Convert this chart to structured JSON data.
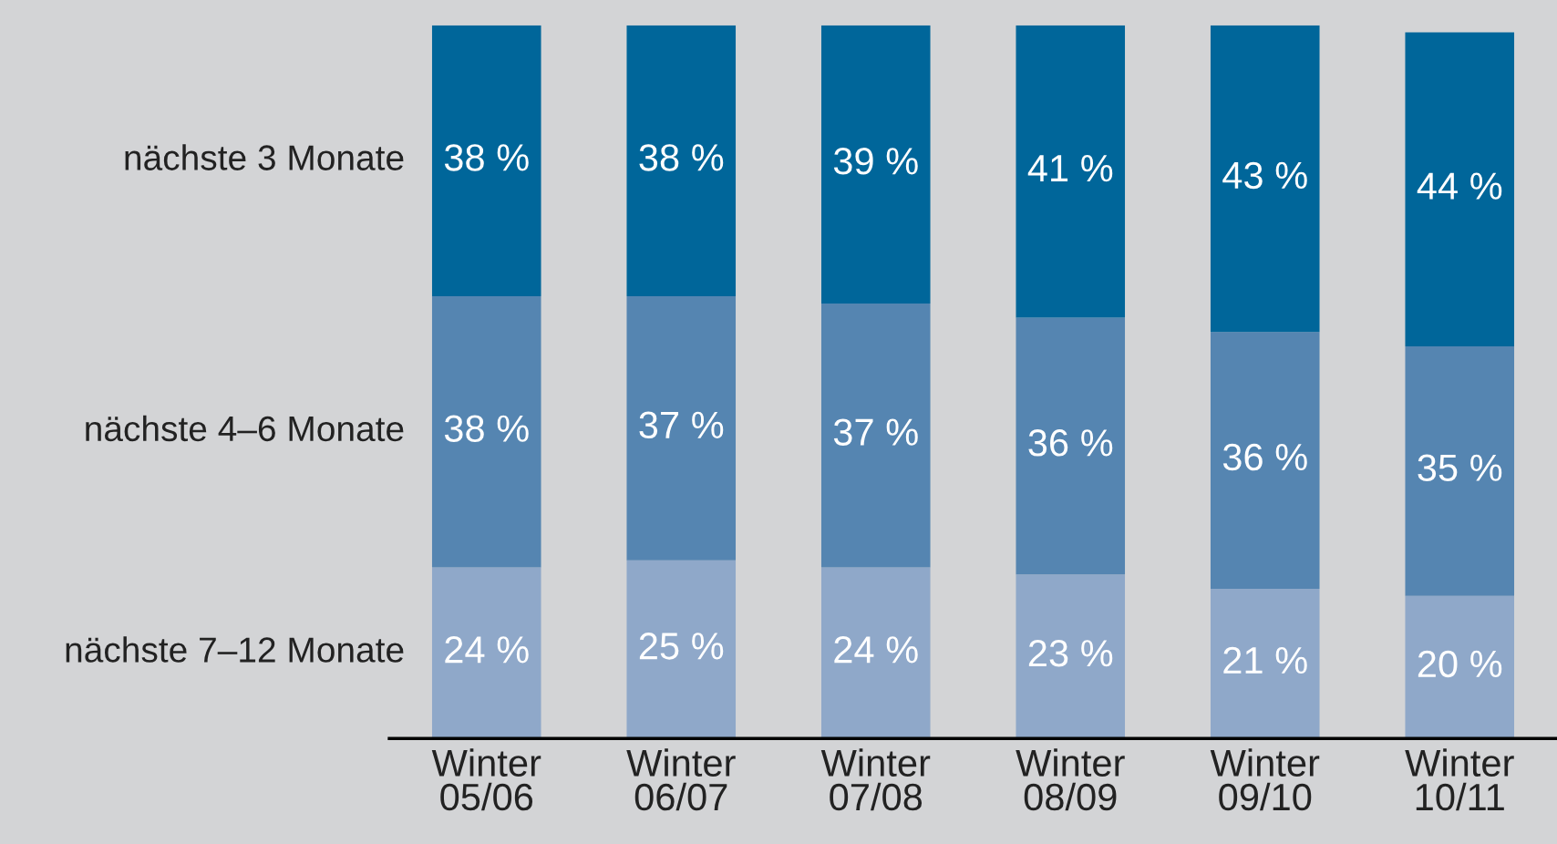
{
  "chart_data": {
    "type": "bar",
    "stacked": true,
    "categories": [
      "Winter\n05/06",
      "Winter\n06/07",
      "Winter\n07/08",
      "Winter\n08/09",
      "Winter\n09/10",
      "Winter\n10/11"
    ],
    "series": [
      {
        "name": "nächste 7–12 Monate",
        "color": "#8fa8c9",
        "values": [
          24,
          25,
          24,
          23,
          21,
          20
        ],
        "value_labels": [
          "24 %",
          "25 %",
          "24 %",
          "23 %",
          "21 %",
          "20 %"
        ]
      },
      {
        "name": "nächste 4–6 Monate",
        "color": "#5585b1",
        "values": [
          38,
          37,
          37,
          36,
          36,
          35
        ],
        "value_labels": [
          "38 %",
          "37 %",
          "37 %",
          "36 %",
          "36 %",
          "35 %"
        ]
      },
      {
        "name": "nächste 3 Monate",
        "color": "#00669a",
        "values": [
          38,
          38,
          39,
          41,
          43,
          44
        ],
        "value_labels": [
          "38 %",
          "38 %",
          "39 %",
          "41 %",
          "43 %",
          "44 %"
        ]
      }
    ],
    "grid": false,
    "legend": false
  }
}
